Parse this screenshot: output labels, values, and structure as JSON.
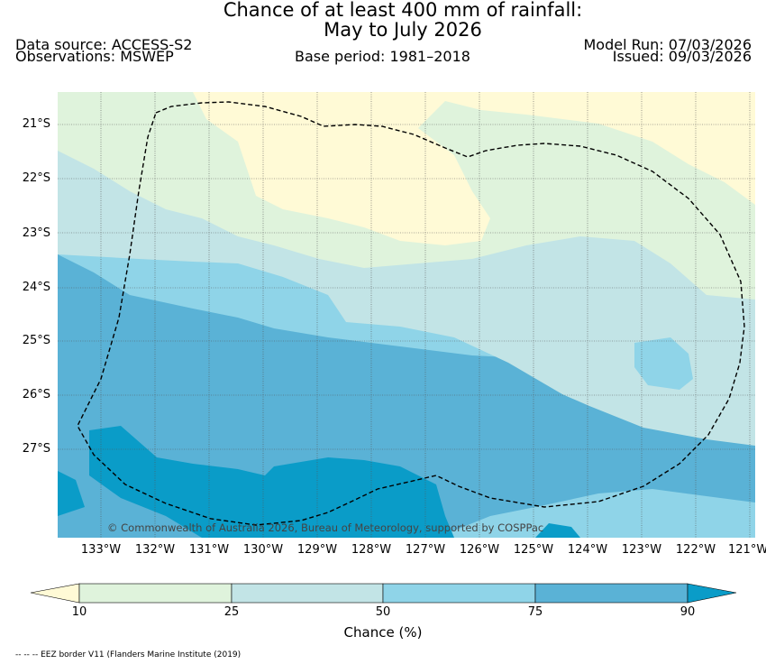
{
  "title": {
    "line1": "Chance of at least 400 mm of rainfall:",
    "line2": "May to July 2026"
  },
  "header": {
    "data_source": "Data source: ACCESS-S2",
    "observations": "Observations: MSWEP",
    "base_period": "Base period: 1981–2018",
    "model_run": "Model Run: 07/03/2026",
    "issued": "Issued: 09/03/2026"
  },
  "map": {
    "lat_labels": [
      "21°S",
      "22°S",
      "23°S",
      "24°S",
      "25°S",
      "26°S",
      "27°S"
    ],
    "lon_labels": [
      "133°W",
      "132°W",
      "131°W",
      "130°W",
      "129°W",
      "128°W",
      "127°W",
      "126°W",
      "125°W",
      "124°W",
      "123°W",
      "122°W",
      "121°W"
    ],
    "copyright": "© Commonwealth of Australia 2026, Bureau of Meteorology, supported by COSPPac"
  },
  "colorbar": {
    "ticks": [
      "10",
      "25",
      "50",
      "75",
      "90"
    ],
    "label": "Chance (%)",
    "colors": [
      "#fffad6",
      "#dff3dc",
      "#c2e4e6",
      "#8fd4e8",
      "#5ab2d6",
      "#0a9cc8"
    ]
  },
  "footer": {
    "legend": "-- -- -- EEZ border V11 (Flanders Marine Institute (2019)"
  },
  "colors": {
    "lt10": "#fffad6",
    "c10_25": "#dff3dc",
    "c25_50": "#c2e4e6",
    "c50_75": "#8fd4e8",
    "c75_90": "#5ab2d6",
    "gt90": "#0a9cc8"
  }
}
